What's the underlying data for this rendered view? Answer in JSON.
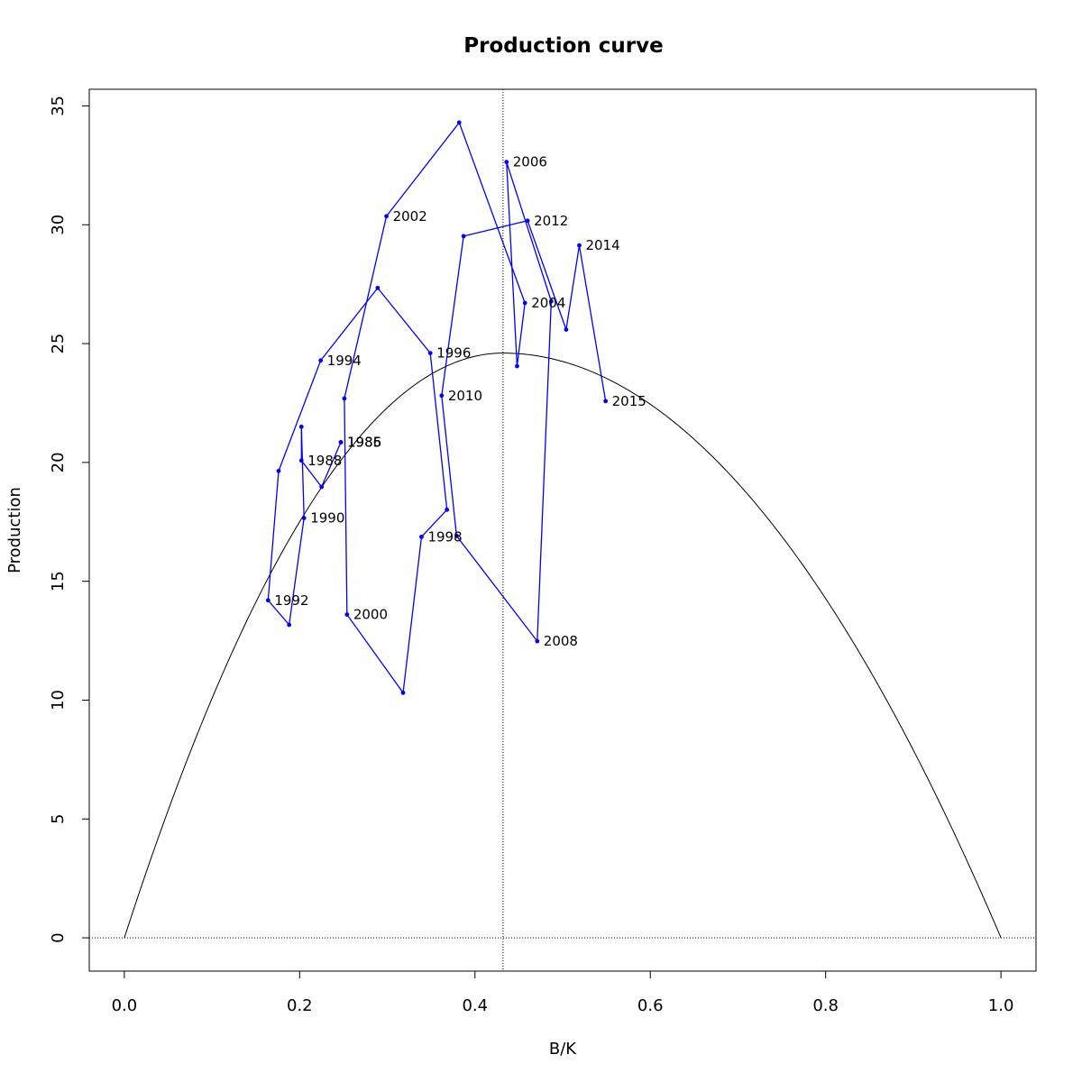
{
  "chart_data": {
    "type": "line",
    "title": "Production curve",
    "xlabel": "B/K",
    "ylabel": "Production",
    "xlim": [
      -0.04,
      1.04
    ],
    "ylim": [
      -1.4,
      35.7
    ],
    "x_ticks": [
      "0.0",
      "0.2",
      "0.4",
      "0.6",
      "0.8",
      "1.0"
    ],
    "y_ticks": [
      "0",
      "5",
      "10",
      "15",
      "20",
      "25",
      "30",
      "35"
    ],
    "grid": false,
    "legend": "none",
    "colors": {
      "series": "#0000ff",
      "curve": "#000000",
      "reference": "#000000"
    },
    "reference_lines": {
      "vertical_x": 0.432,
      "horizontal_y": 0
    },
    "production_curve": {
      "form": "parabola",
      "x_start": 0.0,
      "x_end": 1.0,
      "peak_x": 0.432,
      "peak_y": 24.6
    },
    "series": [
      {
        "points": [
          {
            "x": 0.247,
            "y": 20.85,
            "label": "1985"
          },
          {
            "x": 0.247,
            "y": 20.85,
            "label": "1986"
          },
          {
            "x": 0.225,
            "y": 18.97,
            "label": ""
          },
          {
            "x": 0.202,
            "y": 20.08,
            "label": "1988"
          },
          {
            "x": 0.202,
            "y": 21.5,
            "label": ""
          },
          {
            "x": 0.205,
            "y": 17.66,
            "label": "1990"
          },
          {
            "x": 0.188,
            "y": 13.17,
            "label": ""
          },
          {
            "x": 0.164,
            "y": 14.2,
            "label": "1992"
          },
          {
            "x": 0.176,
            "y": 19.64,
            "label": ""
          },
          {
            "x": 0.224,
            "y": 24.29,
            "label": "1994"
          },
          {
            "x": 0.289,
            "y": 27.34,
            "label": ""
          },
          {
            "x": 0.349,
            "y": 24.6,
            "label": "1996"
          },
          {
            "x": 0.368,
            "y": 18.01,
            "label": ""
          },
          {
            "x": 0.339,
            "y": 16.87,
            "label": "1998"
          },
          {
            "x": 0.318,
            "y": 10.31,
            "label": ""
          },
          {
            "x": 0.254,
            "y": 13.6,
            "label": "2000"
          },
          {
            "x": 0.251,
            "y": 22.69,
            "label": ""
          },
          {
            "x": 0.299,
            "y": 30.36,
            "label": "2002"
          },
          {
            "x": 0.382,
            "y": 34.3,
            "label": ""
          },
          {
            "x": 0.457,
            "y": 26.71,
            "label": "2004"
          },
          {
            "x": 0.448,
            "y": 24.05,
            "label": ""
          },
          {
            "x": 0.436,
            "y": 32.64,
            "label": "2006"
          },
          {
            "x": 0.487,
            "y": 26.78,
            "label": ""
          },
          {
            "x": 0.471,
            "y": 12.48,
            "label": "2008"
          },
          {
            "x": 0.379,
            "y": 16.91,
            "label": ""
          },
          {
            "x": 0.362,
            "y": 22.81,
            "label": "2010"
          },
          {
            "x": 0.387,
            "y": 29.52,
            "label": ""
          },
          {
            "x": 0.46,
            "y": 30.17,
            "label": "2012"
          },
          {
            "x": 0.504,
            "y": 25.59,
            "label": ""
          },
          {
            "x": 0.519,
            "y": 29.13,
            "label": "2014"
          },
          {
            "x": 0.549,
            "y": 22.58,
            "label": "2015"
          }
        ]
      }
    ]
  }
}
